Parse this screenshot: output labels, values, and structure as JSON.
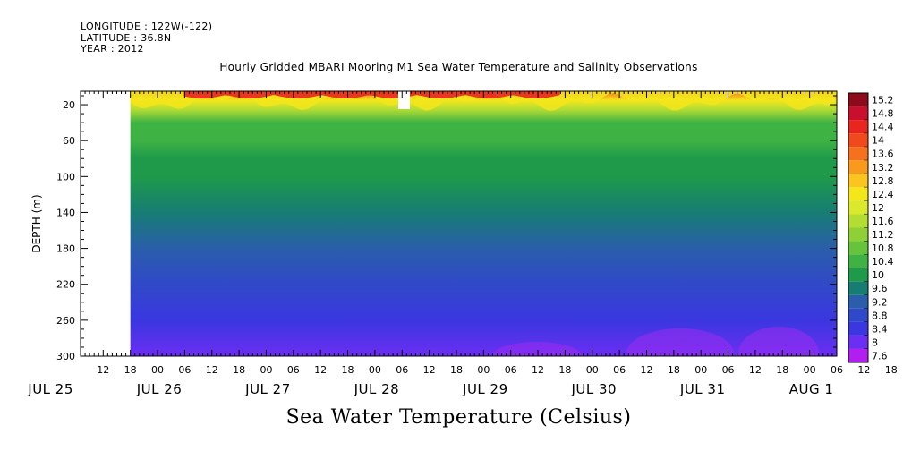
{
  "header": {
    "longitude": "LONGITUDE : 122W(-122)",
    "latitude": "LATITUDE : 36.8N",
    "year": "YEAR : 2012"
  },
  "chart_data": {
    "type": "heatmap",
    "title": "Hourly Gridded MBARI Mooring M1 Sea Water Temperature and Salinity Observations",
    "xlabel": "Sea Water Temperature (Celsius)",
    "ylabel": "DEPTH (m)",
    "y_inverted": true,
    "ylim": [
      300,
      5
    ],
    "y_ticks": [
      20,
      60,
      100,
      140,
      180,
      220,
      260,
      300
    ],
    "x_hour_ticks": [
      "12",
      "18",
      "00",
      "06",
      "12",
      "18",
      "00",
      "06",
      "12",
      "18",
      "00",
      "06",
      "12",
      "18",
      "00",
      "06",
      "12",
      "18",
      "00",
      "06",
      "12",
      "18",
      "00",
      "06",
      "12",
      "18",
      "00",
      "06",
      "12",
      "18",
      "00",
      "06"
    ],
    "x_date_labels": [
      "JUL 25",
      "JUL 26",
      "JUL 27",
      "JUL 28",
      "JUL 29",
      "JUL 30",
      "JUL 31",
      "AUG  1"
    ],
    "x_range_hours_from_jul25_00": [
      7,
      174
    ],
    "data_start_hour_from_jul25_00": 18,
    "colorbar_levels": [
      "15.2",
      "14.8",
      "14.4",
      "14",
      "13.6",
      "13.2",
      "12.8",
      "12.4",
      "12",
      "11.6",
      "11.2",
      "10.8",
      "10.4",
      "10",
      "9.6",
      "9.2",
      "8.8",
      "8.4",
      "8",
      "7.6"
    ],
    "temperature_profile_by_depth": {
      "depth_m": [
        5,
        15,
        25,
        40,
        60,
        80,
        100,
        140,
        180,
        220,
        260,
        300
      ],
      "temperature_c": [
        13.6,
        12.4,
        11.4,
        10.6,
        10.3,
        10.1,
        9.8,
        9.4,
        9.1,
        8.8,
        8.4,
        8.0
      ]
    }
  }
}
